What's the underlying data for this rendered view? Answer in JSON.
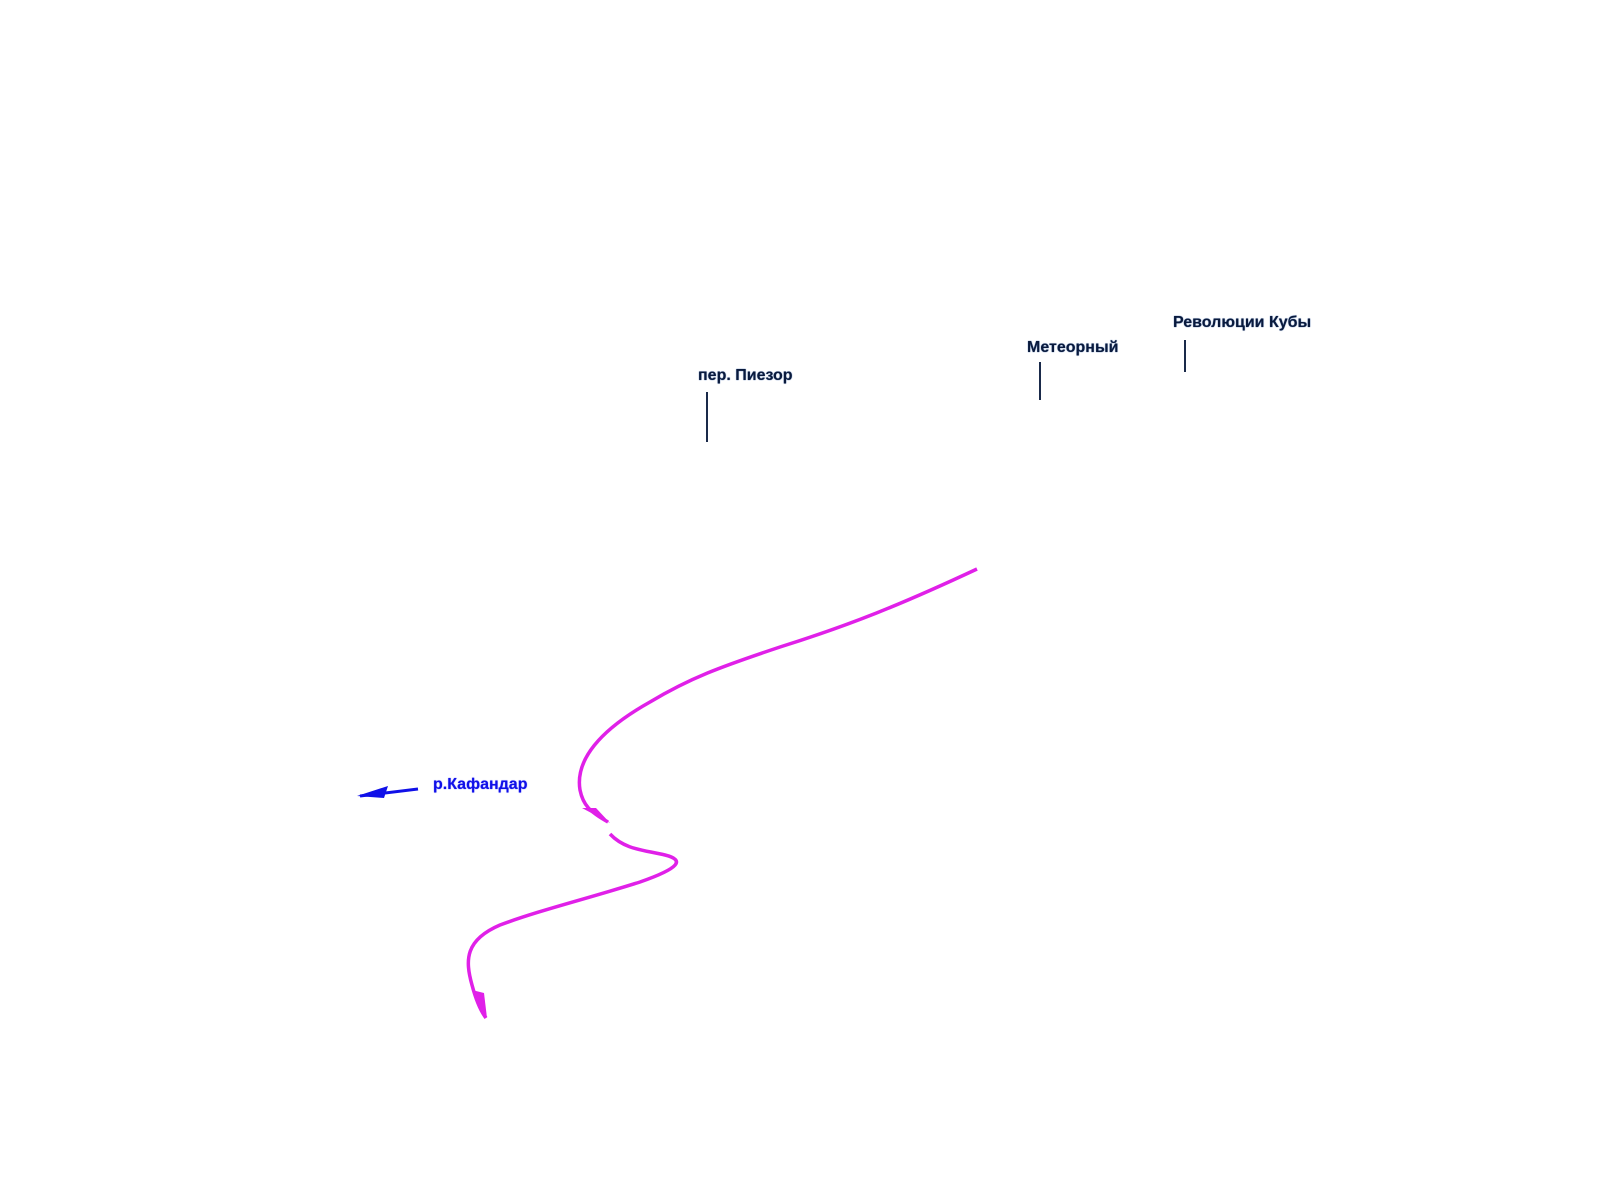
{
  "labels": {
    "street1": "пер. Пиезор",
    "street2": "Метеорный",
    "street3": "Революции Кубы",
    "river": "р.Кафандар"
  },
  "colors": {
    "route": "#e020e8",
    "river": "#1010e8",
    "street_label": "#0a1a3c"
  }
}
